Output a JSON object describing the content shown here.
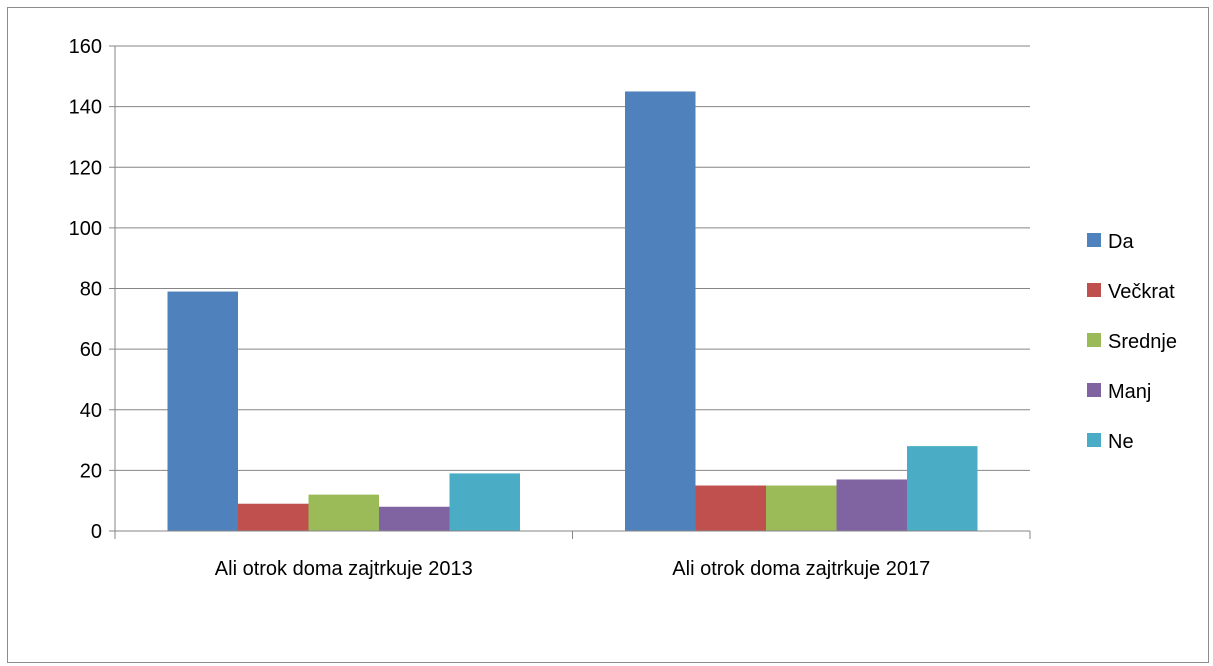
{
  "chart_data": {
    "type": "bar",
    "categories": [
      "Ali otrok doma zajtrkuje 2013",
      "Ali otrok doma zajtrkuje 2017"
    ],
    "series": [
      {
        "name": "Da",
        "values": [
          79,
          145
        ],
        "color": "#4f81bd"
      },
      {
        "name": "Večkrat",
        "values": [
          9,
          15
        ],
        "color": "#c0504d"
      },
      {
        "name": "Srednje",
        "values": [
          12,
          15
        ],
        "color": "#9bbb59"
      },
      {
        "name": "Manj",
        "values": [
          8,
          17
        ],
        "color": "#8064a2"
      },
      {
        "name": "Ne",
        "values": [
          19,
          28
        ],
        "color": "#4bacc6"
      }
    ],
    "ylim": [
      0,
      160
    ],
    "yticks": [
      0,
      20,
      40,
      60,
      80,
      100,
      120,
      140,
      160
    ],
    "grid": true,
    "legend": "right",
    "title": "",
    "xlabel": "",
    "ylabel": ""
  }
}
